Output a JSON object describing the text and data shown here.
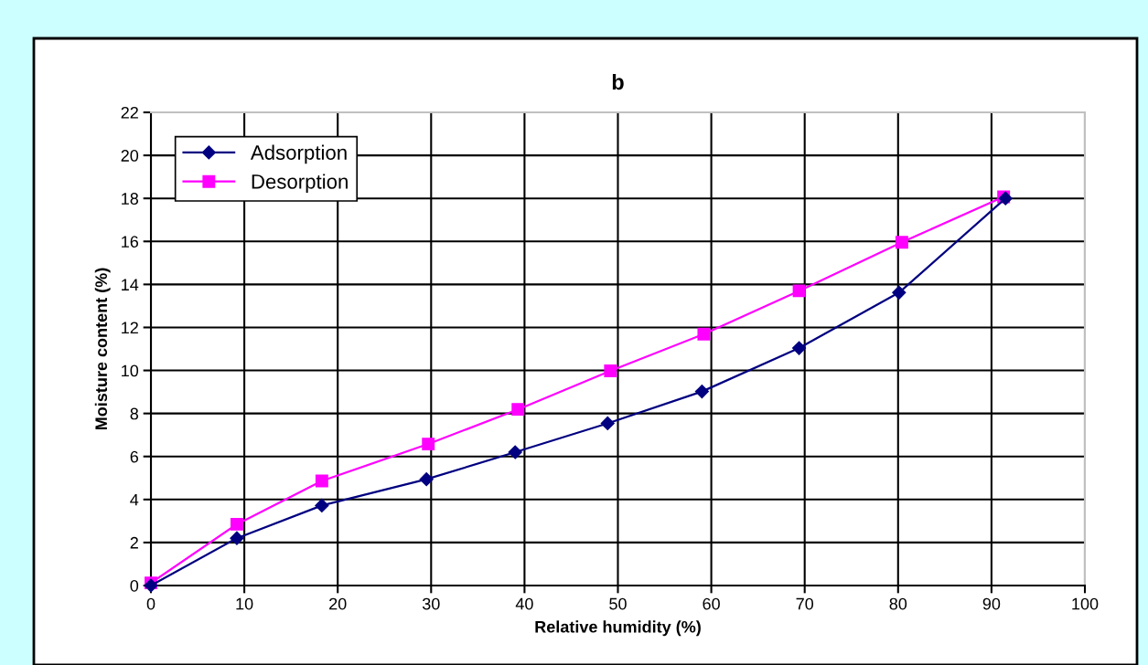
{
  "chart_data": {
    "type": "line",
    "title": "b",
    "xlabel": "Relative humidity (%)",
    "ylabel": "Moisture content (%)",
    "xlim": [
      0,
      100
    ],
    "xticks": [
      0,
      10,
      20,
      30,
      40,
      50,
      60,
      70,
      80,
      90,
      100
    ],
    "ylim": [
      0,
      22
    ],
    "yticks": [
      0,
      2,
      4,
      6,
      8,
      10,
      12,
      14,
      16,
      18,
      20,
      22
    ],
    "grid": true,
    "legend": "top left",
    "line_style": "solid",
    "series": [
      {
        "name": "Adsorption",
        "color": "#000080",
        "marker": "diamond",
        "x": [
          0,
          9.2,
          18.3,
          29.5,
          39.0,
          48.9,
          59.0,
          69.4,
          80.1,
          91.5
        ],
        "values": [
          0,
          2.2,
          3.72,
          4.94,
          6.2,
          7.54,
          9.02,
          11.04,
          13.62,
          18.0
        ]
      },
      {
        "name": "Desorption",
        "color": "#ff00ff",
        "marker": "square",
        "x": [
          0,
          9.2,
          18.3,
          29.7,
          39.3,
          49.2,
          59.2,
          69.4,
          80.4,
          91.3
        ],
        "values": [
          0.12,
          2.85,
          4.86,
          6.58,
          8.19,
          9.98,
          11.69,
          13.7,
          15.96,
          18.07
        ]
      }
    ]
  }
}
